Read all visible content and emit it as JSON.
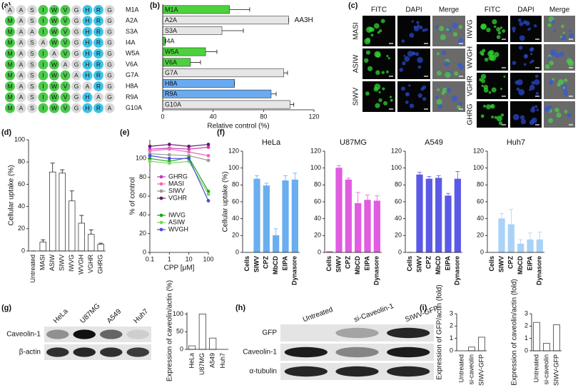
{
  "panel_labels": [
    "(a)",
    "(b)",
    "(c)",
    "(d)",
    "(e)",
    "(f)",
    "(g)",
    "(h)",
    "(i)"
  ],
  "peptide_grid": {
    "position_colors": [
      "#4cc94c",
      "#d9d9d9",
      "#d9d9d9",
      "#4cc94c",
      "#4cc94c",
      "#4cc94c",
      "#d9d9d9",
      "#3fc3e6",
      "#3fc3e6",
      "#d9d9d9"
    ],
    "substitution_color": "#e03cc8",
    "substitution_fill": "#d9d9d9",
    "rows": [
      {
        "label": "M1A",
        "residues": [
          "A",
          "A",
          "S",
          "I",
          "W",
          "V",
          "G",
          "H",
          "R",
          "G"
        ]
      },
      {
        "label": "A2A",
        "residues": [
          "M",
          "A",
          "S",
          "I",
          "W",
          "V",
          "G",
          "H",
          "R",
          "G"
        ]
      },
      {
        "label": "S3A",
        "residues": [
          "M",
          "A",
          "A",
          "I",
          "W",
          "V",
          "G",
          "H",
          "R",
          "G"
        ]
      },
      {
        "label": "I4A",
        "residues": [
          "M",
          "A",
          "S",
          "A",
          "W",
          "V",
          "G",
          "H",
          "R",
          "G"
        ]
      },
      {
        "label": "W5A",
        "residues": [
          "M",
          "A",
          "S",
          "I",
          "A",
          "V",
          "G",
          "H",
          "R",
          "G"
        ]
      },
      {
        "label": "V6A",
        "residues": [
          "M",
          "A",
          "S",
          "I",
          "W",
          "A",
          "G",
          "H",
          "R",
          "G"
        ]
      },
      {
        "label": "G7A",
        "residues": [
          "M",
          "A",
          "S",
          "I",
          "W",
          "V",
          "A",
          "H",
          "R",
          "G"
        ]
      },
      {
        "label": "H8A",
        "residues": [
          "M",
          "A",
          "S",
          "I",
          "W",
          "V",
          "G",
          "A",
          "R",
          "G"
        ]
      },
      {
        "label": "R9A",
        "residues": [
          "M",
          "A",
          "S",
          "I",
          "W",
          "V",
          "G",
          "H",
          "A",
          "G"
        ]
      },
      {
        "label": "G10A",
        "residues": [
          "M",
          "A",
          "S",
          "I",
          "W",
          "V",
          "G",
          "H",
          "R",
          "A"
        ]
      }
    ]
  },
  "microscopy": {
    "channels": [
      "FITC",
      "DAPI",
      "Merge"
    ],
    "channel_colors": [
      "#22c422",
      "#3a78d8",
      "#111111"
    ],
    "left_rows": [
      "MASI",
      "ASIW",
      "SIWV"
    ],
    "right_rows": [
      "IWVG",
      "WVGH",
      "VGHR",
      "GHRG"
    ]
  },
  "blots": {
    "g": {
      "lanes": [
        "HeLa",
        "U87MG",
        "A549",
        "Huh7"
      ],
      "rows": [
        "Caveolin-1",
        "β-actin"
      ]
    },
    "h": {
      "lanes": [
        "Untreated",
        "si-Caveolin-1",
        "SIWV-GFP"
      ],
      "rows": [
        "GFP",
        "Caveolin-1",
        "α-tubulin"
      ]
    }
  },
  "chart_data": [
    {
      "type": "bar",
      "orientation": "horizontal",
      "categories": [
        "M1A",
        "A2A",
        "S3A",
        "I4A",
        "W5A",
        "V6A",
        "G7A",
        "H8A",
        "R9A",
        "G10A"
      ],
      "values": [
        53,
        100,
        47,
        2,
        34,
        22,
        96,
        57,
        86,
        101
      ],
      "errors": [
        16,
        0,
        17,
        0,
        9,
        8,
        3,
        0,
        4,
        3
      ],
      "colors": [
        "#4cd23c",
        "#e6e6e6",
        "#e6e6e6",
        "#4cd23c",
        "#4cd23c",
        "#4cd23c",
        "#e6e6e6",
        "#6aaaf0",
        "#6aaaf0",
        "#e6e6e6"
      ],
      "annotation": "AA3H",
      "xlabel": "Relative control (%)",
      "xlim": [
        0,
        120
      ],
      "xticks": [
        0,
        40,
        80,
        120
      ]
    },
    {
      "type": "bar",
      "categories": [
        "Untreated",
        "MASI",
        "ASIW",
        "SIWV",
        "IWVG",
        "WVGH",
        "VGHR",
        "GHRG"
      ],
      "values": [
        0,
        8,
        71,
        70,
        45,
        25,
        15,
        6
      ],
      "errors": [
        0,
        2,
        8,
        3,
        9,
        7,
        4,
        1
      ],
      "color": "#ffffff",
      "ylabel": "Cellular uptake (%)",
      "ylim": [
        0,
        100
      ],
      "yticks": [
        0,
        20,
        40,
        60,
        80,
        100
      ]
    },
    {
      "type": "line",
      "xscale": "log",
      "x": [
        0.1,
        1,
        10,
        100
      ],
      "series": [
        {
          "name": "GHRG",
          "color": "#c03cc0",
          "values": [
            110,
            111,
            110,
            112
          ]
        },
        {
          "name": "MASI",
          "color": "#f06ab8",
          "values": [
            108,
            110,
            107,
            103
          ]
        },
        {
          "name": "SIWV",
          "color": "#9a9a9a",
          "values": [
            105,
            104,
            103,
            98
          ]
        },
        {
          "name": "VGHR",
          "color": "#6a1a6a",
          "values": [
            113,
            115,
            113,
            115
          ]
        },
        {
          "name": "IWVG",
          "color": "#1fa31f",
          "values": [
            100,
            97,
            101,
            65
          ]
        },
        {
          "name": "ASIW",
          "color": "#7ad85a",
          "values": [
            97,
            95,
            97,
            62
          ]
        },
        {
          "name": "WVGH",
          "color": "#4a4ae0",
          "values": [
            103,
            100,
            100,
            55
          ]
        }
      ],
      "xlabel": "CPP [μM]",
      "ylabel": "% of control",
      "xlim": [
        0.1,
        100
      ],
      "xticks": [
        0.1,
        1,
        10,
        100
      ],
      "ylim": [
        0,
        120
      ],
      "yticks": [
        0,
        20,
        40,
        60,
        80,
        100
      ]
    },
    {
      "type": "bar",
      "title": "HeLa",
      "categories": [
        "Cells",
        "SIWV",
        "CPZ",
        "MbCD",
        "EIPA",
        "Dynasore"
      ],
      "values": [
        0,
        87,
        79,
        20,
        85,
        86
      ],
      "errors": [
        0,
        4,
        3,
        8,
        6,
        8
      ],
      "color": "#6aaef0",
      "error_color": "#6aaef0",
      "category_color": "#2840c8",
      "ylabel": "Cellular uptake (%)",
      "ylim": [
        0,
        120
      ],
      "yticks": [
        0,
        20,
        40,
        60,
        80,
        100,
        120
      ]
    },
    {
      "type": "bar",
      "title": "U87MG",
      "categories": [
        "Cells",
        "SIWV",
        "CPZ",
        "MbCD",
        "EIPA",
        "Dynasore"
      ],
      "values": [
        1,
        100,
        86,
        58,
        62,
        61
      ],
      "errors": [
        0,
        3,
        2,
        13,
        6,
        6
      ],
      "color": "#e05ce0",
      "error_color": "#e05ce0",
      "category_color": "#2840c8",
      "ylim": [
        0,
        120
      ],
      "yticks": [
        0,
        20,
        40,
        60,
        80,
        100,
        120
      ]
    },
    {
      "type": "bar",
      "title": "A549",
      "categories": [
        "Cells",
        "SIWV",
        "CPZ",
        "MbCD",
        "EIPA",
        "Dynasore"
      ],
      "values": [
        0,
        92,
        87,
        88,
        67,
        87
      ],
      "errors": [
        0,
        3,
        3,
        3,
        3,
        9
      ],
      "color": "#5a5ae6",
      "error_color": "#5a5ae6",
      "category_color": "#2840c8",
      "ylim": [
        0,
        120
      ],
      "yticks": [
        0,
        20,
        40,
        60,
        80,
        100,
        120
      ]
    },
    {
      "type": "bar",
      "title": "Huh7",
      "categories": [
        "Cells",
        "SIWV",
        "CPZ",
        "MbCD",
        "EIPA",
        "Dynasore"
      ],
      "values": [
        0,
        40,
        33,
        10,
        15,
        15
      ],
      "errors": [
        0,
        6,
        18,
        5,
        8,
        9
      ],
      "color": "#aad2f6",
      "error_color": "#aad2f6",
      "category_color": "#2840c8",
      "ylim": [
        0,
        120
      ],
      "yticks": [
        0,
        20,
        40,
        60,
        80,
        100,
        120
      ]
    },
    {
      "type": "bar",
      "categories": [
        "HeLa",
        "U87MG",
        "A549",
        "Huh7"
      ],
      "values": [
        10,
        100,
        32,
        0
      ],
      "color": "#ffffff",
      "ylabel": "Expression of caveolin/actin (%)",
      "ylim": [
        0,
        105
      ],
      "yticks": [
        0,
        50,
        100
      ]
    },
    {
      "type": "bar",
      "categories": [
        "Untreated",
        "si-caveolin",
        "SIWV-GFP"
      ],
      "values": [
        0,
        0.3,
        1.1
      ],
      "color": "#ffffff",
      "ylabel": "Expression of GFP/actin (fold)",
      "ylim": [
        0,
        3
      ],
      "yticks": [
        0,
        1,
        2,
        3
      ]
    },
    {
      "type": "bar",
      "categories": [
        "Untreated",
        "si-caveolin",
        "SIWV-GFP"
      ],
      "values": [
        2.3,
        0.6,
        2.1
      ],
      "color": "#ffffff",
      "ylabel": "Expression of caveolin/actin (fold)",
      "ylim": [
        0,
        3
      ],
      "yticks": [
        0,
        1,
        2,
        3
      ]
    }
  ]
}
